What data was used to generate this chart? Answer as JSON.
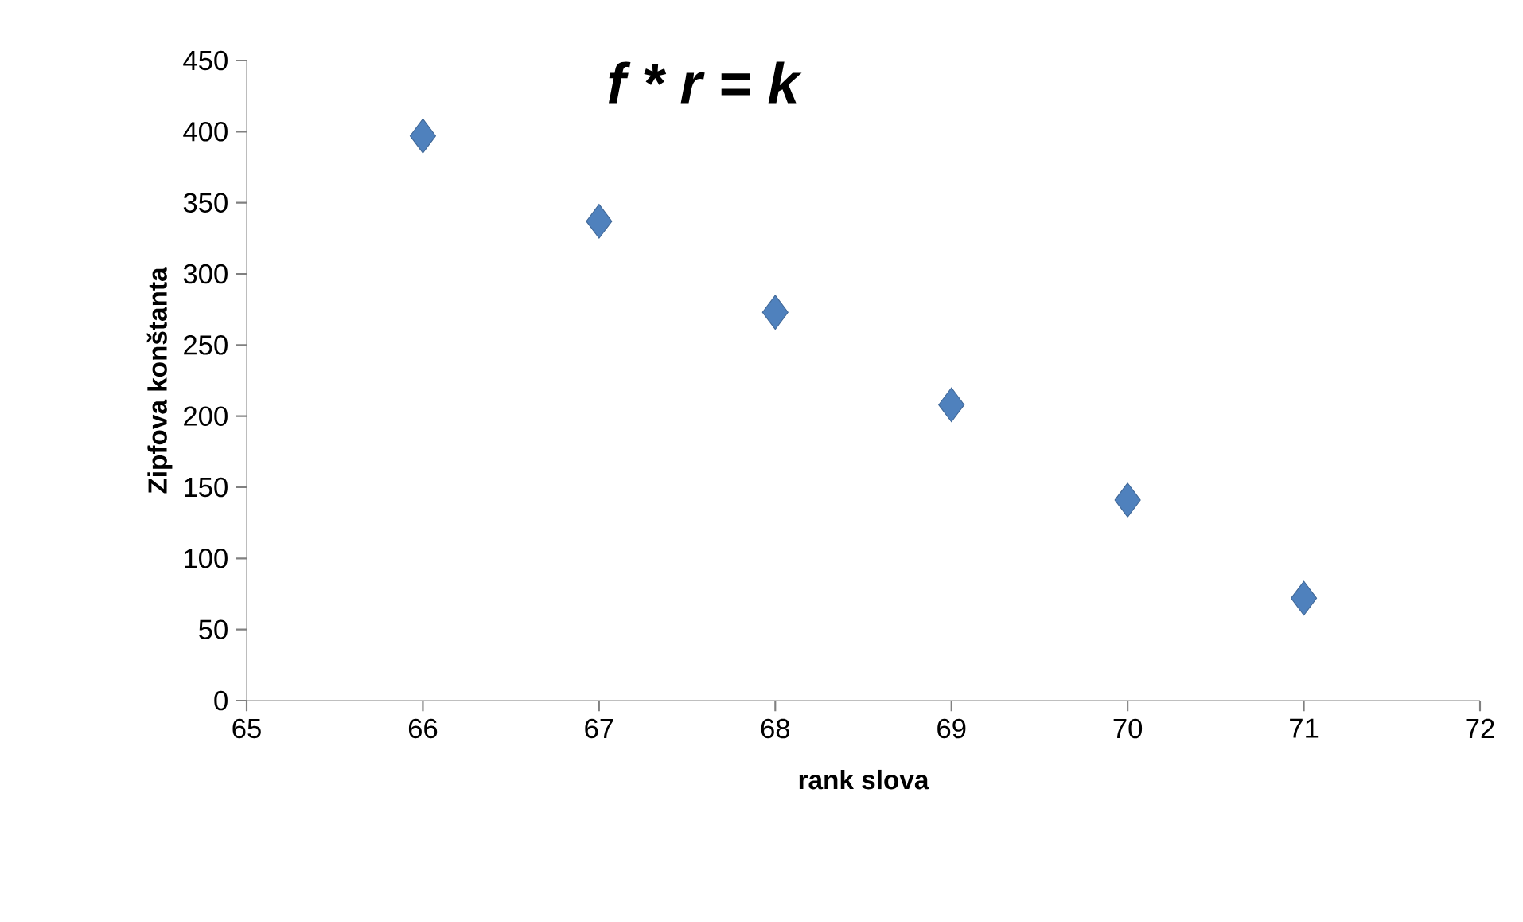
{
  "chart_data": {
    "type": "scatter",
    "title": "f * r = k",
    "xlabel": "rank slova",
    "ylabel": "Zipfova konštanta",
    "x": [
      66,
      67,
      68,
      69,
      70,
      71
    ],
    "series": [
      {
        "color": "#4f81bd",
        "values": [
          397,
          337,
          273,
          208,
          141,
          72
        ]
      }
    ],
    "xlim": [
      65,
      72
    ],
    "xticks": [
      65,
      66,
      67,
      68,
      69,
      70,
      71,
      72
    ],
    "ylim": [
      0,
      450
    ],
    "yticks": [
      0,
      50,
      100,
      150,
      200,
      250,
      300,
      350,
      400,
      450
    ],
    "marker": "diamond",
    "grid": false
  }
}
